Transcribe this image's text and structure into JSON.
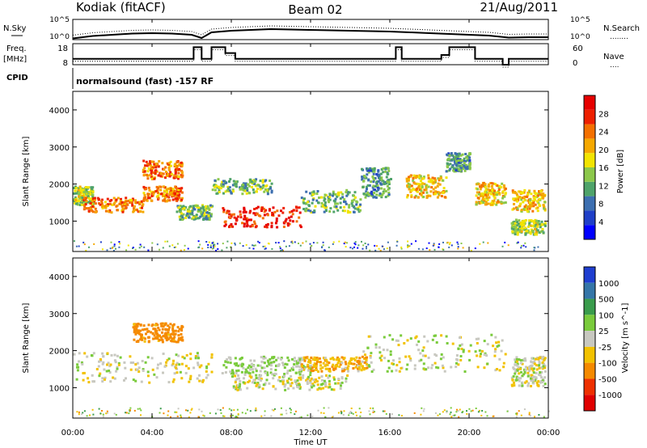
{
  "header": {
    "station": "Kodiak (fitACF)",
    "beam": "Beam 02",
    "date": "21/Aug/2011"
  },
  "noise_panel": {
    "left_label": "N.Sky",
    "right_label": "N.Search",
    "right_key": "........",
    "left_ticks": [
      "10^5",
      "10^0"
    ],
    "right_ticks": [
      "10^5",
      "10^0"
    ]
  },
  "freq_panel": {
    "left_label_line1": "Freq.",
    "left_label_line2": "[MHz]",
    "left_ticks": [
      "18",
      "8"
    ],
    "right_ticks": [
      "60",
      "0"
    ],
    "right_label": "Nave",
    "right_key": "...."
  },
  "cpid": {
    "label": "CPID",
    "value": "normalsound (fast) -157 RF"
  },
  "power_panel": {
    "ylabel": "Slant Range [km]",
    "yticks": [
      "1000",
      "2000",
      "3000",
      "4000"
    ],
    "colorbar_label": "Power [dB]",
    "colorbar_ticks": [
      "4",
      "8",
      "12",
      "16",
      "20",
      "24",
      "28"
    ],
    "colorbar_colors": [
      "#0000ff",
      "#2040c8",
      "#3d6fb0",
      "#4fa36a",
      "#8cc84b",
      "#f2e400",
      "#f5a800",
      "#f47000",
      "#ee2000",
      "#e60000"
    ]
  },
  "velocity_panel": {
    "ylabel": "Slant Range [km]",
    "yticks": [
      "1000",
      "2000",
      "3000",
      "4000"
    ],
    "colorbar_label": "Velocity [m s^-1]",
    "colorbar_ticks": [
      "1000",
      "500",
      "100",
      "25",
      "-25",
      "-100",
      "-500",
      "-1000"
    ],
    "colorbar_colors": [
      "#1f3fd0",
      "#3576a8",
      "#3a9c4c",
      "#7acb3c",
      "#c8c8c0",
      "#f2c200",
      "#f58a00",
      "#ee3000",
      "#e00000"
    ]
  },
  "time_axis": {
    "ticks": [
      "00:00",
      "04:00",
      "08:00",
      "12:00",
      "16:00",
      "20:00",
      "00:00"
    ],
    "label": "Time UT"
  },
  "chart_data": {
    "type": "heatmap",
    "x_range_hours": [
      0,
      24
    ],
    "y_range_km": [
      180,
      4500
    ],
    "power_dB_range": [
      0,
      30
    ],
    "velocity_range_ms": [
      -1000,
      1000
    ],
    "noise_series_log10": [
      [
        0,
        0.3
      ],
      [
        1,
        0.9
      ],
      [
        2,
        1.2
      ],
      [
        3,
        1.5
      ],
      [
        4,
        1.6
      ],
      [
        5,
        1.5
      ],
      [
        6,
        1.2
      ],
      [
        6.5,
        0.4
      ],
      [
        7,
        1.8
      ],
      [
        8,
        2.2
      ],
      [
        9,
        2.4
      ],
      [
        10,
        2.6
      ],
      [
        11,
        2.5
      ],
      [
        12,
        2.4
      ],
      [
        13,
        2.3
      ],
      [
        14,
        2.2
      ],
      [
        15,
        2.1
      ],
      [
        16,
        2.0
      ],
      [
        17,
        1.8
      ],
      [
        18,
        1.6
      ],
      [
        19,
        1.4
      ],
      [
        20,
        1.2
      ],
      [
        21,
        1.0
      ],
      [
        22,
        0.5
      ],
      [
        23,
        0.6
      ],
      [
        24,
        0.6
      ]
    ],
    "freq_MHz": [
      [
        0,
        11
      ],
      [
        6.1,
        11
      ],
      [
        6.1,
        17
      ],
      [
        6.5,
        17
      ],
      [
        6.5,
        11
      ],
      [
        7.0,
        11
      ],
      [
        7.0,
        17
      ],
      [
        7.7,
        17
      ],
      [
        7.7,
        14
      ],
      [
        8.2,
        14
      ],
      [
        8.2,
        11
      ],
      [
        16.3,
        11
      ],
      [
        16.3,
        17
      ],
      [
        16.6,
        17
      ],
      [
        16.6,
        11
      ],
      [
        18.6,
        11
      ],
      [
        18.6,
        13
      ],
      [
        19.0,
        13
      ],
      [
        19.0,
        17
      ],
      [
        20.3,
        17
      ],
      [
        20.3,
        11
      ],
      [
        21.7,
        11
      ],
      [
        21.7,
        8
      ],
      [
        22.0,
        8
      ],
      [
        22.0,
        11
      ],
      [
        24,
        11
      ]
    ],
    "power_regions": [
      {
        "t0": 0,
        "t1": 1.0,
        "r0": 1400,
        "r1": 1900,
        "dB": 14
      },
      {
        "t0": 0.5,
        "t1": 3.5,
        "r0": 1200,
        "r1": 1600,
        "dB": 22
      },
      {
        "t0": 3.5,
        "t1": 5.5,
        "r0": 1500,
        "r1": 1900,
        "dB": 22
      },
      {
        "t0": 3.5,
        "t1": 5.5,
        "r0": 2100,
        "r1": 2600,
        "dB": 22
      },
      {
        "t0": 5.2,
        "t1": 7.0,
        "r0": 1000,
        "r1": 1400,
        "dB": 12
      },
      {
        "t0": 7.0,
        "t1": 10.0,
        "r0": 1700,
        "r1": 2100,
        "dB": 12
      },
      {
        "t0": 7.5,
        "t1": 11.5,
        "r0": 800,
        "r1": 1350,
        "dB": 26
      },
      {
        "t0": 11.5,
        "t1": 14.5,
        "r0": 1200,
        "r1": 1800,
        "dB": 12
      },
      {
        "t0": 14.5,
        "t1": 16.0,
        "r0": 1600,
        "r1": 2400,
        "dB": 10
      },
      {
        "t0": 16.8,
        "t1": 18.8,
        "r0": 1600,
        "r1": 2200,
        "dB": 18
      },
      {
        "t0": 18.8,
        "t1": 20.0,
        "r0": 2300,
        "r1": 2800,
        "dB": 10
      },
      {
        "t0": 20.3,
        "t1": 21.8,
        "r0": 1400,
        "r1": 2000,
        "dB": 18
      },
      {
        "t0": 22.1,
        "t1": 23.8,
        "r0": 1200,
        "r1": 1800,
        "dB": 18
      },
      {
        "t0": 22.1,
        "t1": 23.8,
        "r0": 600,
        "r1": 1000,
        "dB": 14
      }
    ],
    "velocity_regions": [
      {
        "t0": 0,
        "t1": 7.0,
        "r0": 1100,
        "r1": 1900,
        "v": 0
      },
      {
        "t0": 3.0,
        "t1": 5.5,
        "r0": 2200,
        "r1": 2700,
        "v": -150
      },
      {
        "t0": 7.5,
        "t1": 12.0,
        "r0": 1300,
        "r1": 1800,
        "v": 40
      },
      {
        "t0": 8.0,
        "t1": 14.0,
        "r0": 900,
        "r1": 1300,
        "v": 0
      },
      {
        "t0": 11.5,
        "t1": 14.8,
        "r0": 1400,
        "r1": 1800,
        "v": -80
      },
      {
        "t0": 14.5,
        "t1": 21.8,
        "r0": 1400,
        "r1": 2400,
        "v": 0
      },
      {
        "t0": 22.1,
        "t1": 23.8,
        "r0": 1000,
        "r1": 1800,
        "v": 0
      }
    ]
  }
}
